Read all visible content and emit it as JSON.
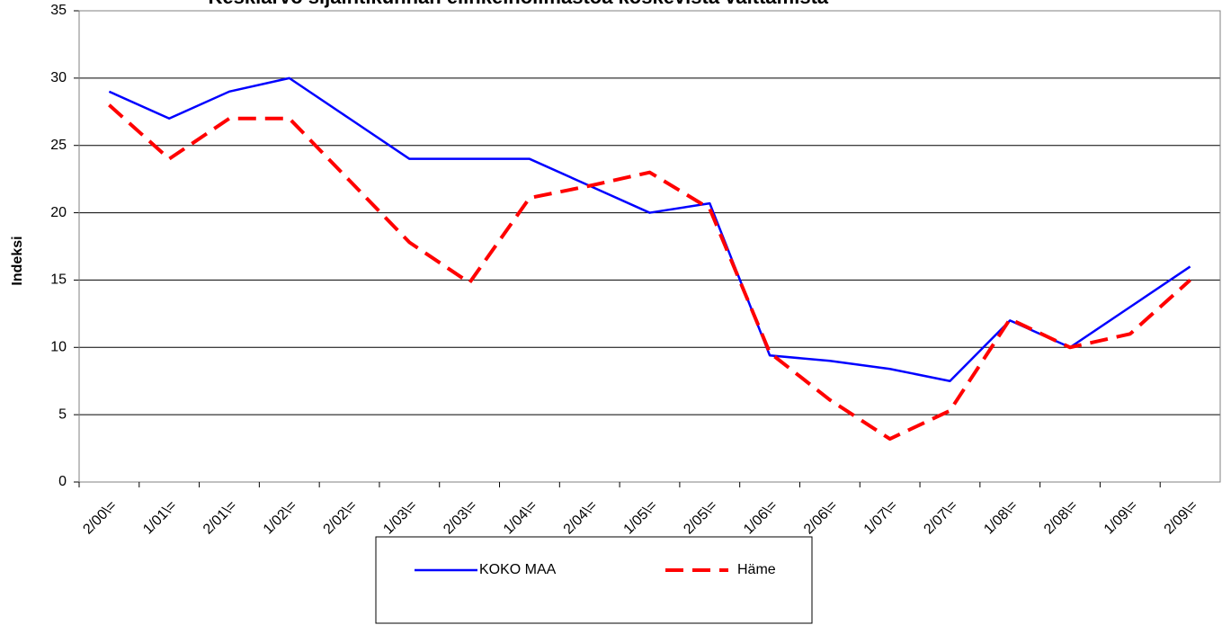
{
  "chart_data": {
    "type": "line",
    "title": "Keskiarvo sijaintikunnan elinkeinoilmastoa koskevista väittämistä-",
    "y_label": "Indeksi",
    "categories": [
      "2/00\\=",
      "1/01\\=",
      "2/01\\=",
      "1/02\\=",
      "2/02\\=",
      "1/03\\=",
      "2/03\\=",
      "1/04\\=",
      "2/04\\=",
      "1/05\\=",
      "2/05\\=",
      "1/06\\=",
      "2/06\\=",
      "1/07\\=",
      "2/07\\=",
      "1/08\\=",
      "2/08\\=",
      "1/09\\=",
      "2/09\\="
    ],
    "series": [
      {
        "name": "KOKO MAA",
        "color": "#0000ff",
        "dashed": false,
        "values": [
          29,
          27,
          29,
          30,
          27,
          24,
          24,
          24,
          22,
          20,
          20.7,
          9.4,
          9,
          8.4,
          7.5,
          12,
          10,
          13,
          16
        ]
      },
      {
        "name": "Häme",
        "color": "#ff0000",
        "dashed": true,
        "values": [
          28,
          24,
          27,
          27,
          22.4,
          17.8,
          14.8,
          21.1,
          22,
          23,
          20.3,
          9.6,
          6.1,
          3.2,
          5.3,
          12.1,
          10,
          11,
          15
        ]
      }
    ],
    "ylim": [
      0,
      35
    ],
    "yticks": [
      0,
      5,
      10,
      15,
      20,
      25,
      30,
      35
    ],
    "grid": true,
    "legend": "bottom"
  }
}
